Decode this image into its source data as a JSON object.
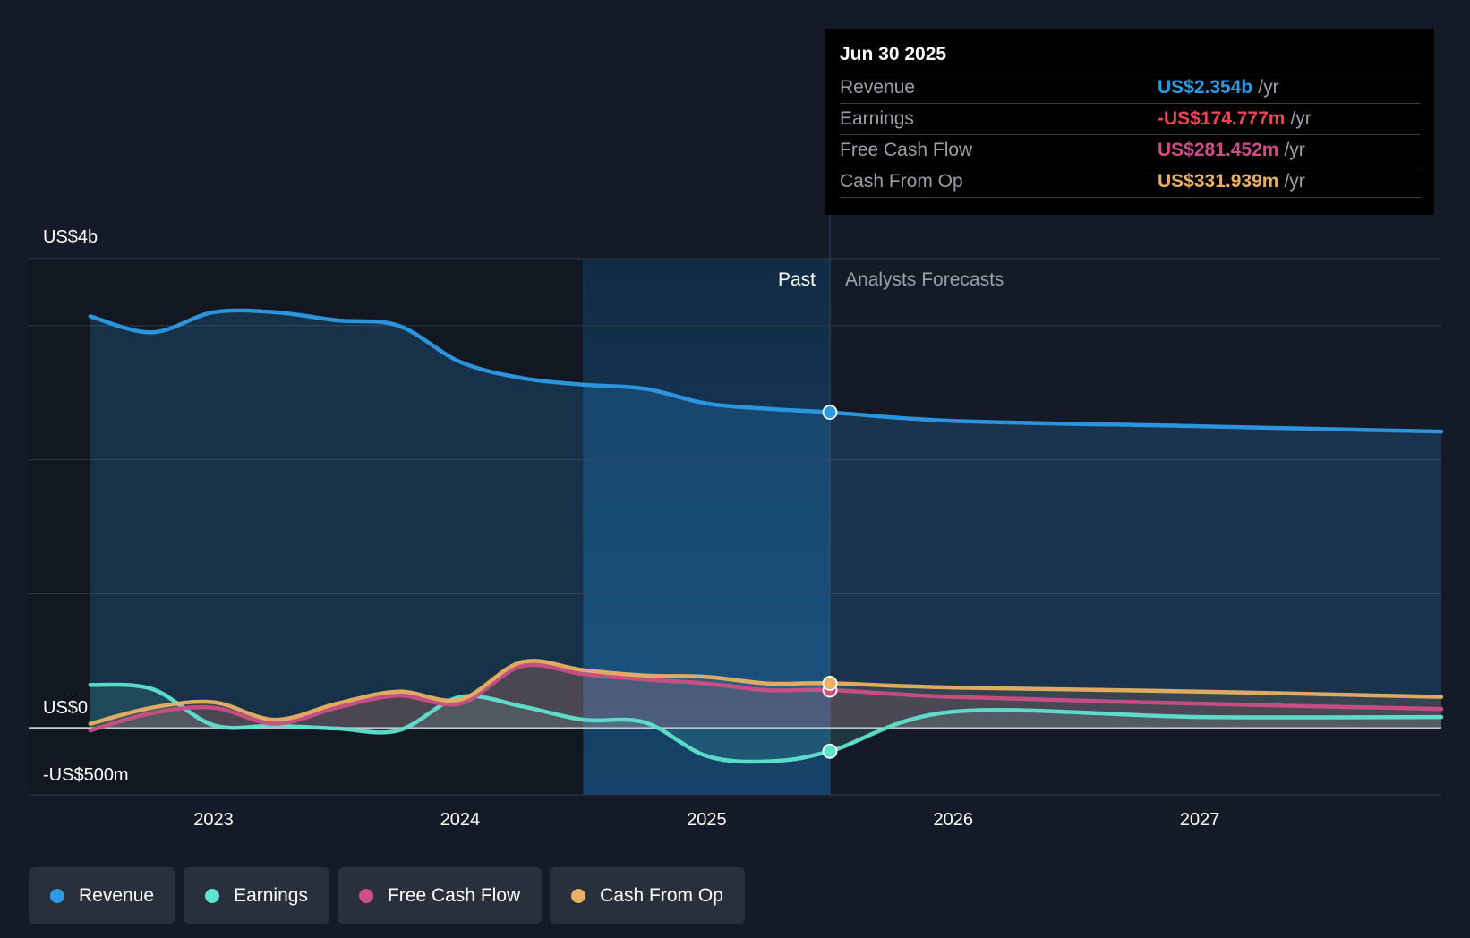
{
  "colors": {
    "revenue": "#2d9ae6",
    "earnings": "#5fe3cf",
    "fcf": "#cc4f86",
    "cfo": "#e9b063",
    "earnings_negative": "#ef4452"
  },
  "axis": {
    "y_top_label": "US$4b",
    "y_zero_label": "US$0",
    "y_bottom_label": "-US$500m"
  },
  "regions": {
    "past_label": "Past",
    "forecast_label": "Analysts Forecasts"
  },
  "tooltip": {
    "date": "Jun 30 2025",
    "rows": [
      {
        "label": "Revenue",
        "value": "US$2.354b",
        "unit": "/yr",
        "color_key": "revenue"
      },
      {
        "label": "Earnings",
        "value": "-US$174.777m",
        "unit": "/yr",
        "color_key": "earnings_negative"
      },
      {
        "label": "Free Cash Flow",
        "value": "US$281.452m",
        "unit": "/yr",
        "color_key": "fcf"
      },
      {
        "label": "Cash From Op",
        "value": "US$331.939m",
        "unit": "/yr",
        "color_key": "cfo"
      }
    ]
  },
  "legend": [
    {
      "label": "Revenue",
      "color_key": "revenue"
    },
    {
      "label": "Earnings",
      "color_key": "earnings"
    },
    {
      "label": "Free Cash Flow",
      "color_key": "fcf"
    },
    {
      "label": "Cash From Op",
      "color_key": "cfo"
    }
  ],
  "chart_data": {
    "type": "line",
    "x_ticks": [
      2023,
      2024,
      2025,
      2026,
      2027
    ],
    "x_range": [
      2022.25,
      2027.98
    ],
    "ylim": [
      -500,
      3500
    ],
    "y_grid": [
      -500,
      0,
      1000,
      2000,
      3000,
      3500
    ],
    "past_end": 2025.5,
    "highlight_start": 2024.5,
    "grid": true,
    "legend_position": "bottom-left",
    "series": [
      {
        "name": "Revenue",
        "color_key": "revenue",
        "area": true,
        "values": [
          [
            2022.5,
            3070
          ],
          [
            2022.75,
            2950
          ],
          [
            2023.0,
            3100
          ],
          [
            2023.25,
            3100
          ],
          [
            2023.5,
            3040
          ],
          [
            2023.75,
            3000
          ],
          [
            2024.0,
            2730
          ],
          [
            2024.25,
            2610
          ],
          [
            2024.5,
            2560
          ],
          [
            2024.75,
            2530
          ],
          [
            2025.0,
            2420
          ],
          [
            2025.25,
            2380
          ],
          [
            2025.5,
            2354
          ],
          [
            2026.0,
            2290
          ],
          [
            2027.0,
            2250
          ],
          [
            2027.98,
            2210
          ]
        ]
      },
      {
        "name": "Earnings",
        "color_key": "earnings",
        "area": true,
        "values": [
          [
            2022.5,
            320
          ],
          [
            2022.75,
            290
          ],
          [
            2023.0,
            20
          ],
          [
            2023.25,
            15
          ],
          [
            2023.5,
            -5
          ],
          [
            2023.75,
            -20
          ],
          [
            2024.0,
            230
          ],
          [
            2024.25,
            160
          ],
          [
            2024.5,
            60
          ],
          [
            2024.75,
            40
          ],
          [
            2025.0,
            -210
          ],
          [
            2025.25,
            -250
          ],
          [
            2025.5,
            -175
          ],
          [
            2026.0,
            120
          ],
          [
            2027.0,
            80
          ],
          [
            2027.98,
            80
          ]
        ]
      },
      {
        "name": "Free Cash Flow",
        "color_key": "fcf",
        "area": true,
        "values": [
          [
            2022.5,
            -20
          ],
          [
            2022.75,
            110
          ],
          [
            2023.0,
            150
          ],
          [
            2023.25,
            30
          ],
          [
            2023.5,
            150
          ],
          [
            2023.75,
            240
          ],
          [
            2024.0,
            180
          ],
          [
            2024.25,
            460
          ],
          [
            2024.5,
            400
          ],
          [
            2024.75,
            360
          ],
          [
            2025.0,
            330
          ],
          [
            2025.25,
            280
          ],
          [
            2025.5,
            281
          ],
          [
            2026.0,
            230
          ],
          [
            2027.0,
            180
          ],
          [
            2027.98,
            140
          ]
        ]
      },
      {
        "name": "Cash From Op",
        "color_key": "cfo",
        "area": true,
        "values": [
          [
            2022.5,
            30
          ],
          [
            2022.75,
            150
          ],
          [
            2023.0,
            190
          ],
          [
            2023.25,
            60
          ],
          [
            2023.5,
            180
          ],
          [
            2023.75,
            270
          ],
          [
            2024.0,
            210
          ],
          [
            2024.25,
            490
          ],
          [
            2024.5,
            430
          ],
          [
            2024.75,
            390
          ],
          [
            2025.0,
            380
          ],
          [
            2025.25,
            330
          ],
          [
            2025.5,
            332
          ],
          [
            2026.0,
            300
          ],
          [
            2027.0,
            270
          ],
          [
            2027.98,
            230
          ]
        ]
      }
    ]
  }
}
